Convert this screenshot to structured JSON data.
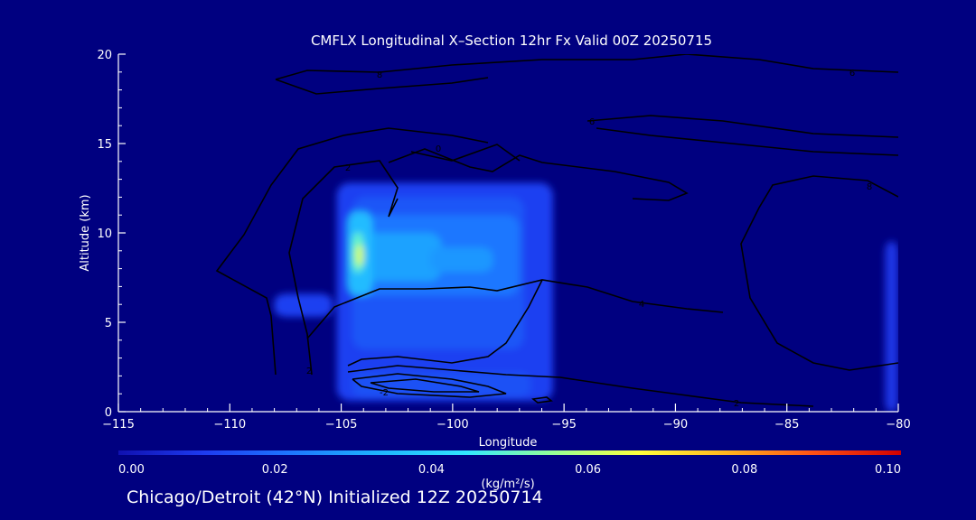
{
  "chart_data": {
    "type": "heatmap",
    "title": "CMFLX Longitudinal X–Section 12hr  Fx Valid 00Z 20250715",
    "xlabel": "Longitude",
    "ylabel": "Altitude (km)",
    "xlim": [
      -115,
      -80
    ],
    "ylim": [
      0,
      20
    ],
    "xticks": [
      -115,
      -110,
      -105,
      -100,
      -95,
      -90,
      -85,
      -80
    ],
    "xtick_labels": [
      "−115",
      "−110",
      "−105",
      "−100",
      "−95",
      "−90",
      "−85",
      "−80"
    ],
    "yticks": [
      0,
      5,
      10,
      15,
      20
    ],
    "ytick_labels": [
      "0",
      "5",
      "10",
      "15",
      "20"
    ],
    "colorbar": {
      "label": "(kg/m²/s)",
      "min": 0.0,
      "max": 0.1,
      "ticks": [
        "0.00",
        "0.02",
        "0.04",
        "0.06",
        "0.08",
        "0.10"
      ],
      "colors": [
        "#1010b0",
        "#1e3cf0",
        "#1e78ff",
        "#1eb4ff",
        "#32e6ff",
        "#96ff96",
        "#ffff3c",
        "#ffb41e",
        "#ff5014",
        "#d20000"
      ]
    },
    "field_cells": [
      {
        "lon": [
          -105.2,
          -95.5
        ],
        "alt": [
          0.6,
          12.8
        ],
        "value": 0.012
      },
      {
        "lon": [
          -104.5,
          -96.8
        ],
        "alt": [
          3.5,
          12.0
        ],
        "value": 0.016
      },
      {
        "lon": [
          -104.2,
          -97.0
        ],
        "alt": [
          6.5,
          11.0
        ],
        "value": 0.022
      },
      {
        "lon": [
          -104.5,
          -100.5
        ],
        "alt": [
          7.3,
          10.0
        ],
        "value": 0.03
      },
      {
        "lon": [
          -101.0,
          -98.2
        ],
        "alt": [
          7.8,
          9.2
        ],
        "value": 0.028
      },
      {
        "lon": [
          -104.7,
          -103.6
        ],
        "alt": [
          6.5,
          11.2
        ],
        "value": 0.035
      },
      {
        "lon": [
          -104.5,
          -104.0
        ],
        "alt": [
          7.8,
          10.0
        ],
        "value": 0.05
      },
      {
        "lon": [
          -104.35,
          -104.0
        ],
        "alt": [
          8.2,
          9.3
        ],
        "value": 0.062
      },
      {
        "lon": [
          -108.0,
          -105.4
        ],
        "alt": [
          5.3,
          6.6
        ],
        "value": 0.012
      },
      {
        "lon": [
          -80.6,
          -80.0
        ],
        "alt": [
          0.0,
          9.5
        ],
        "value": 0.009
      },
      {
        "lon": [
          -104.5,
          -96.5
        ],
        "alt": [
          0.8,
          2.2
        ],
        "value": 0.015
      }
    ],
    "contour_labels": [
      "8",
      "6",
      "4",
      "2",
      "0",
      "6",
      "8",
      "2",
      "2",
      "-2"
    ]
  },
  "footer": "Chicago/Detroit (42°N) Initialized 12Z 20250714"
}
